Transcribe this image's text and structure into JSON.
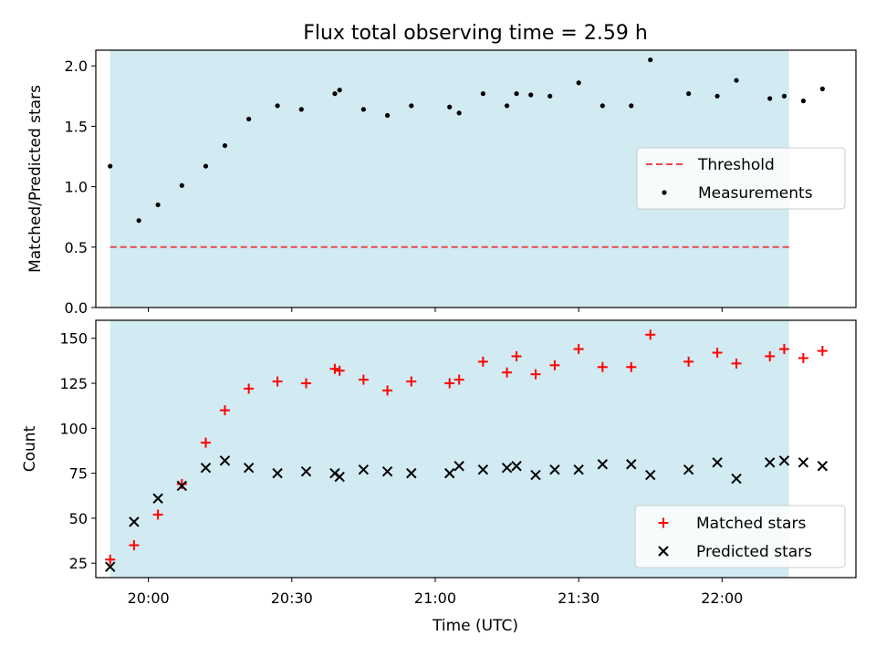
{
  "colors": {
    "span_fill": "#add8e6",
    "threshold": "#e8474c",
    "measurement": "#000000",
    "matched": "#ff0000",
    "predicted": "#000000"
  },
  "chart_data": [
    {
      "type": "scatter",
      "title": "Flux total observing time = 2.59 h",
      "xlabel": "",
      "ylabel": "Matched/Predicted stars",
      "xlim": [
        "19:49",
        "22:28"
      ],
      "ylim": [
        0,
        2.13
      ],
      "yticks": [
        0.0,
        0.5,
        1.0,
        1.5,
        2.0
      ],
      "ytick_labels": [
        "0.0",
        "0.5",
        "1.0",
        "1.5",
        "2.0"
      ],
      "observing_span": [
        "19:52",
        "22:14"
      ],
      "threshold": {
        "name": "Threshold",
        "y": 0.5,
        "x": [
          "19:52",
          "22:14"
        ]
      },
      "legend": {
        "location": "center-right",
        "entries": [
          "Threshold",
          "Measurements"
        ]
      },
      "series": [
        {
          "name": "Measurements",
          "x": [
            "19:52",
            "19:58",
            "20:02",
            "20:07",
            "20:12",
            "20:16",
            "20:21",
            "20:27",
            "20:32",
            "20:39",
            "20:40",
            "20:45",
            "20:50",
            "20:55",
            "21:03",
            "21:05",
            "21:10",
            "21:15",
            "21:17",
            "21:20",
            "21:24",
            "21:30",
            "21:35",
            "21:41",
            "21:45",
            "21:53",
            "21:59",
            "22:03",
            "22:10",
            "22:13",
            "22:17",
            "22:21",
            "22:25",
            "22:28"
          ],
          "y": [
            1.17,
            0.72,
            0.85,
            1.01,
            1.17,
            1.34,
            1.56,
            1.67,
            1.64,
            1.77,
            1.8,
            1.64,
            1.59,
            1.67,
            1.66,
            1.61,
            1.77,
            1.67,
            1.77,
            1.76,
            1.75,
            1.86,
            1.67,
            1.67,
            2.05,
            1.77,
            1.75,
            1.88,
            1.73,
            1.75,
            1.71,
            1.81,
            null,
            null
          ]
        }
      ]
    },
    {
      "type": "scatter",
      "title": "",
      "xlabel": "Time (UTC)",
      "ylabel": "Count",
      "xlim": [
        "19:49",
        "22:28"
      ],
      "ylim": [
        17,
        160
      ],
      "yticks": [
        25,
        50,
        75,
        100,
        125,
        150
      ],
      "ytick_labels": [
        "25",
        "50",
        "75",
        "100",
        "125",
        "150"
      ],
      "xticks": [
        "20:00",
        "20:30",
        "21:00",
        "21:30",
        "22:00"
      ],
      "observing_span": [
        "19:52",
        "22:14"
      ],
      "legend": {
        "location": "lower-right",
        "entries": [
          "Matched stars",
          "Predicted stars"
        ]
      },
      "series": [
        {
          "name": "Matched stars",
          "x": [
            "19:52",
            "19:57",
            "20:02",
            "20:07",
            "20:12",
            "20:16",
            "20:21",
            "20:27",
            "20:33",
            "20:39",
            "20:40",
            "20:45",
            "20:50",
            "20:55",
            "21:03",
            "21:05",
            "21:10",
            "21:15",
            "21:17",
            "21:21",
            "21:25",
            "21:30",
            "21:35",
            "21:41",
            "21:45",
            "21:53",
            "21:59",
            "22:03",
            "22:10",
            "22:13",
            "22:17",
            "22:21",
            "22:25",
            "22:28"
          ],
          "y": [
            27,
            35,
            52,
            69,
            92,
            110,
            122,
            126,
            125,
            133,
            132,
            127,
            121,
            126,
            125,
            127,
            137,
            131,
            140,
            130,
            135,
            144,
            134,
            134,
            152,
            137,
            142,
            136,
            140,
            144,
            139,
            143,
            null,
            null
          ]
        },
        {
          "name": "Predicted stars",
          "x": [
            "19:52",
            "19:57",
            "20:02",
            "20:07",
            "20:12",
            "20:16",
            "20:21",
            "20:27",
            "20:33",
            "20:39",
            "20:40",
            "20:45",
            "20:50",
            "20:55",
            "21:03",
            "21:05",
            "21:10",
            "21:15",
            "21:17",
            "21:21",
            "21:25",
            "21:30",
            "21:35",
            "21:41",
            "21:45",
            "21:53",
            "21:59",
            "22:03",
            "22:10",
            "22:13",
            "22:17",
            "22:21",
            "22:25",
            "22:28"
          ],
          "y": [
            23,
            48,
            61,
            68,
            78,
            82,
            78,
            75,
            76,
            75,
            73,
            77,
            76,
            75,
            75,
            79,
            77,
            78,
            79,
            74,
            77,
            77,
            80,
            80,
            74,
            77,
            81,
            72,
            81,
            82,
            81,
            79,
            null,
            null
          ]
        }
      ]
    }
  ]
}
